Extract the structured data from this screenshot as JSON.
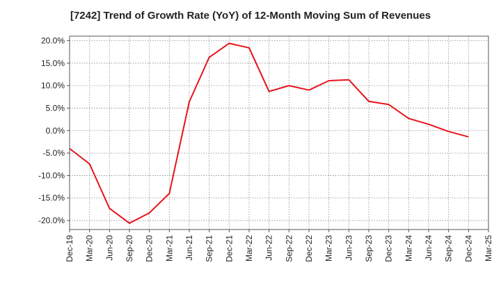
{
  "chart_data": {
    "type": "line",
    "title": "[7242]  Trend of Growth Rate (YoY) of 12-Month Moving Sum of Revenues",
    "xlabel": "",
    "ylabel": "",
    "ylim": [
      -22,
      21
    ],
    "y_ticks": [
      {
        "value": 20,
        "label": "20.0%"
      },
      {
        "value": 15,
        "label": "15.0%"
      },
      {
        "value": 10,
        "label": "10.0%"
      },
      {
        "value": 5,
        "label": "5.0%"
      },
      {
        "value": 0,
        "label": "0.0%"
      },
      {
        "value": -5,
        "label": "-5.0%"
      },
      {
        "value": -10,
        "label": "-10.0%"
      },
      {
        "value": -15,
        "label": "-15.0%"
      },
      {
        "value": -20,
        "label": "-20.0%"
      }
    ],
    "x_tick_labels": [
      "Dec-19",
      "Mar-20",
      "Jun-20",
      "Sep-20",
      "Dec-20",
      "Mar-21",
      "Jun-21",
      "Sep-21",
      "Dec-21",
      "Mar-22",
      "Jun-22",
      "Sep-22",
      "Dec-22",
      "Mar-23",
      "Jun-23",
      "Sep-23",
      "Dec-23",
      "Mar-24",
      "Jun-24",
      "Sep-24",
      "Dec-24",
      "Mar-25"
    ],
    "grid": true,
    "line_color": "#e8121a",
    "series": [
      {
        "x": [
          "Dec-19",
          "Mar-20",
          "Jun-20",
          "Sep-20",
          "Dec-20",
          "Mar-21",
          "Jun-21",
          "Sep-21",
          "Dec-21",
          "Mar-22",
          "Jun-22",
          "Sep-22",
          "Dec-22",
          "Mar-23",
          "Jun-23",
          "Sep-23",
          "Dec-23",
          "Mar-24",
          "Jun-24",
          "Sep-24",
          "Dec-24"
        ],
        "values": [
          -4.0,
          -7.4,
          -17.3,
          -20.6,
          -18.3,
          -14.0,
          6.4,
          16.3,
          19.4,
          18.4,
          8.7,
          10.0,
          9.0,
          11.1,
          11.3,
          6.5,
          5.8,
          2.7,
          1.4,
          -0.2,
          -1.4
        ]
      }
    ]
  }
}
